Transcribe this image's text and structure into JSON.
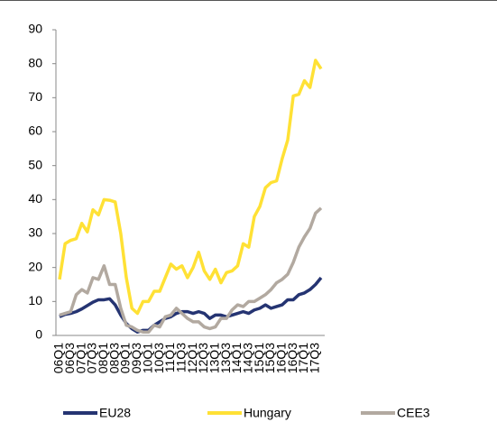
{
  "chart_data": {
    "type": "line",
    "categories": [
      "06Q1",
      null,
      "06Q3",
      null,
      "07Q1",
      null,
      "07Q3",
      null,
      "08Q1",
      null,
      "08Q3",
      null,
      "09Q1",
      null,
      "09Q3",
      null,
      "10Q1",
      null,
      "10Q3",
      null,
      "11Q1",
      null,
      "11Q3",
      null,
      "12Q1",
      null,
      "12Q3",
      null,
      "13Q1",
      null,
      "13Q3",
      null,
      "14Q1",
      null,
      "14Q3",
      null,
      "15Q1",
      null,
      "15Q3",
      null,
      "16Q1",
      null,
      "16Q3",
      null,
      "17Q1",
      null,
      "17Q3",
      null
    ],
    "series": [
      {
        "name": "EU28",
        "color": "#253472",
        "values": [
          5.5,
          6.2,
          6.5,
          7,
          7.8,
          8.8,
          9.8,
          10.5,
          10.5,
          10.8,
          9,
          6,
          3.5,
          2,
          1,
          1.5,
          1.5,
          3,
          4,
          5,
          5.5,
          6.5,
          7,
          7,
          6.5,
          7,
          6.5,
          5,
          6,
          6,
          5.5,
          6,
          6.5,
          7,
          6.5,
          7.5,
          8,
          9,
          8,
          8.5,
          9,
          10.5,
          10.5,
          12,
          12.5,
          13.5,
          15,
          17
        ]
      },
      {
        "name": "Hungary",
        "color": "#ffe135",
        "values": [
          16.5,
          27,
          28,
          28.5,
          33,
          30.5,
          37,
          35.5,
          40,
          39.8,
          39.3,
          30,
          17,
          8,
          6.5,
          10,
          10,
          13,
          13,
          17,
          21,
          19.5,
          20.5,
          17,
          20,
          24.5,
          19,
          16.5,
          19.5,
          15.5,
          18.5,
          19,
          20.5,
          27,
          26,
          35,
          38,
          43.5,
          45,
          45.5,
          52,
          57.5,
          70.5,
          71,
          75,
          73,
          81,
          78.5
        ]
      },
      {
        "name": "CEE3",
        "color": "#b2a9a0",
        "values": [
          6,
          6.5,
          7,
          12,
          13.5,
          12.5,
          17,
          16.5,
          20.5,
          15,
          15,
          8,
          3,
          2.5,
          1.5,
          1,
          1,
          3,
          2.5,
          5.5,
          6,
          8,
          6.5,
          5,
          4,
          4,
          2.5,
          2,
          2.5,
          5,
          5,
          7.5,
          9,
          8.5,
          10,
          10,
          11,
          12,
          13.5,
          15.5,
          16.5,
          18,
          21.5,
          26,
          29,
          31.5,
          36,
          37.5
        ]
      }
    ],
    "ylim": [
      0,
      90
    ],
    "yticks": [
      0,
      10,
      20,
      30,
      40,
      50,
      60,
      70,
      80,
      90
    ],
    "legend": "bottom"
  }
}
